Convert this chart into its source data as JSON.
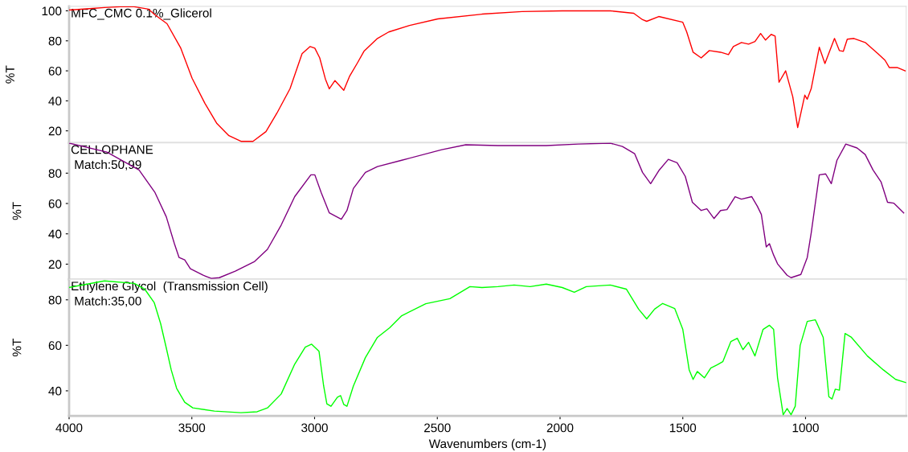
{
  "chart_data": [
    {
      "type": "line",
      "ylabel": "%T",
      "annotations": [
        "MFC_CMC 0.1%_Glicerol"
      ],
      "xlim": [
        4000,
        590
      ],
      "xticks": [
        4000,
        3500,
        3000,
        2500,
        2000,
        1500,
        1000
      ],
      "ylim": [
        12,
        103
      ],
      "yticks": [
        20,
        40,
        60,
        80,
        100
      ],
      "tick_labels": "y",
      "grid": false,
      "x": [
        4000,
        3905,
        3856,
        3791,
        3735,
        3676,
        3650,
        3601,
        3545,
        3499,
        3447,
        3398,
        3349,
        3300,
        3251,
        3198,
        3153,
        3100,
        3051,
        3018,
        2999,
        2979,
        2956,
        2940,
        2917,
        2881,
        2858,
        2825,
        2799,
        2744,
        2698,
        2613,
        2498,
        2318,
        2155,
        1991,
        1795,
        1700,
        1664,
        1647,
        1598,
        1500,
        1484,
        1458,
        1425,
        1392,
        1346,
        1314,
        1294,
        1261,
        1232,
        1206,
        1183,
        1163,
        1140,
        1124,
        1108,
        1081,
        1052,
        1032,
        1003,
        993,
        977,
        944,
        921,
        882,
        862,
        846,
        830,
        803,
        757,
        705,
        676,
        659,
        627,
        594
      ],
      "series": [
        {
          "color": "#ff0000",
          "values": [
            100.5,
            101.6,
            102.2,
            102.7,
            102.7,
            101.1,
            97.3,
            91.4,
            75.1,
            55.1,
            38.4,
            24.9,
            16.8,
            13.0,
            13.0,
            19.5,
            31.9,
            48.1,
            71.4,
            76.2,
            75.1,
            68.6,
            54.6,
            48.0,
            53.5,
            47.0,
            56.2,
            65.4,
            73.0,
            81.6,
            85.9,
            90.3,
            94.6,
            97.8,
            99.5,
            100.0,
            100.0,
            98.4,
            94.1,
            93.0,
            96.2,
            92.4,
            85.9,
            72.4,
            68.6,
            73.5,
            72.4,
            70.8,
            76.2,
            78.9,
            77.8,
            79.5,
            84.9,
            80.5,
            84.3,
            83.2,
            52.4,
            60.0,
            42.7,
            22.2,
            43.8,
            41.1,
            48.1,
            75.7,
            64.9,
            81.6,
            73.5,
            73.0,
            81.1,
            81.6,
            78.9,
            71.4,
            67.0,
            62.2,
            62.2,
            60.0
          ]
        }
      ]
    },
    {
      "type": "line",
      "ylabel": "%T",
      "annotations": [
        "CELLOPHANE",
        "Match:50,99"
      ],
      "xlim": [
        4000,
        590
      ],
      "xticks": [
        4000,
        3500,
        3000,
        2500,
        2000,
        1500,
        1000
      ],
      "ylim": [
        10,
        100
      ],
      "yticks": [
        20,
        40,
        60,
        80
      ],
      "tick_labels": "y",
      "grid": false,
      "x": [
        4000,
        3846,
        3715,
        3650,
        3604,
        3571,
        3552,
        3529,
        3506,
        3454,
        3421,
        3388,
        3323,
        3244,
        3192,
        3136,
        3081,
        3015,
        2999,
        2973,
        2940,
        2891,
        2868,
        2842,
        2793,
        2744,
        2645,
        2482,
        2384,
        2253,
        2056,
        1926,
        1795,
        1746,
        1696,
        1664,
        1631,
        1598,
        1559,
        1523,
        1490,
        1461,
        1425,
        1402,
        1373,
        1346,
        1320,
        1287,
        1261,
        1219,
        1196,
        1180,
        1160,
        1147,
        1130,
        1114,
        1075,
        1059,
        1019,
        993,
        977,
        944,
        918,
        895,
        872,
        836,
        790,
        757,
        725,
        692,
        666,
        640,
        600
      ],
      "series": [
        {
          "color": "#800080",
          "values": [
            99.8,
            93.9,
            82.1,
            67.2,
            51.2,
            33.5,
            24.4,
            22.8,
            17.0,
            12.7,
            10.6,
            11.1,
            15.4,
            21.8,
            29.8,
            45.8,
            64.5,
            78.9,
            78.9,
            67.2,
            53.8,
            49.6,
            55.4,
            69.9,
            80.5,
            84.3,
            88.5,
            95.5,
            98.7,
            98.2,
            98.2,
            99.2,
            99.8,
            97.6,
            92.8,
            80.5,
            73.1,
            81.6,
            89.1,
            86.9,
            77.9,
            60.8,
            55.4,
            56.5,
            50.1,
            55.4,
            56.0,
            64.5,
            62.9,
            64.5,
            58.1,
            52.8,
            31.4,
            33.5,
            26.0,
            20.2,
            12.7,
            11.1,
            13.2,
            24.4,
            40.5,
            78.9,
            79.5,
            73.1,
            88.5,
            99.2,
            96.6,
            92.3,
            82.1,
            74.1,
            60.8,
            60.2,
            53.8
          ]
        }
      ]
    },
    {
      "type": "line",
      "xlabel": "Wavenumbers (cm-1)",
      "ylabel": "%T",
      "annotations": [
        "Ethylene Glycol  (Transmission Cell)",
        "Match:35,00"
      ],
      "xlim": [
        4000,
        590
      ],
      "xticks": [
        4000,
        3500,
        3000,
        2500,
        2000,
        1500,
        1000
      ],
      "ylim": [
        29,
        89
      ],
      "yticks": [
        40,
        60,
        80
      ],
      "grid": false,
      "x": [
        4000,
        3856,
        3735,
        3692,
        3653,
        3627,
        3604,
        3584,
        3562,
        3529,
        3496,
        3408,
        3300,
        3234,
        3192,
        3136,
        3081,
        3038,
        3012,
        2982,
        2963,
        2950,
        2933,
        2907,
        2894,
        2881,
        2868,
        2842,
        2793,
        2744,
        2694,
        2645,
        2547,
        2449,
        2367,
        2318,
        2253,
        2187,
        2122,
        2056,
        1991,
        1942,
        1893,
        1795,
        1730,
        1680,
        1647,
        1615,
        1582,
        1533,
        1500,
        1474,
        1458,
        1441,
        1412,
        1386,
        1360,
        1337,
        1304,
        1278,
        1255,
        1232,
        1206,
        1173,
        1147,
        1130,
        1114,
        1091,
        1075,
        1059,
        1042,
        1022,
        993,
        960,
        928,
        905,
        892,
        879,
        862,
        839,
        813,
        748,
        683,
        633,
        591
      ],
      "series": [
        {
          "color": "#00ff00",
          "values": [
            85.4,
            88.3,
            87.2,
            84.7,
            78.7,
            69.5,
            58.8,
            49.2,
            41.1,
            35.0,
            32.5,
            31.1,
            30.4,
            30.8,
            32.5,
            38.6,
            51.7,
            59.2,
            60.5,
            57.4,
            42.1,
            34.3,
            33.2,
            37.2,
            37.9,
            34.0,
            33.2,
            42.1,
            54.6,
            63.5,
            67.7,
            73.0,
            78.3,
            80.5,
            85.8,
            85.4,
            85.8,
            86.5,
            85.8,
            86.9,
            85.4,
            83.3,
            85.8,
            86.5,
            84.7,
            75.9,
            71.6,
            75.9,
            78.4,
            76.2,
            67.0,
            49.2,
            45.0,
            48.5,
            45.7,
            50.0,
            51.4,
            52.8,
            61.7,
            63.1,
            58.1,
            61.3,
            55.3,
            67.0,
            68.8,
            67.0,
            45.7,
            29.5,
            32.2,
            29.5,
            33.2,
            59.9,
            70.5,
            71.2,
            63.5,
            37.4,
            36.4,
            40.7,
            40.3,
            65.2,
            63.5,
            55.3,
            49.2,
            45.0,
            43.6
          ]
        }
      ]
    }
  ]
}
